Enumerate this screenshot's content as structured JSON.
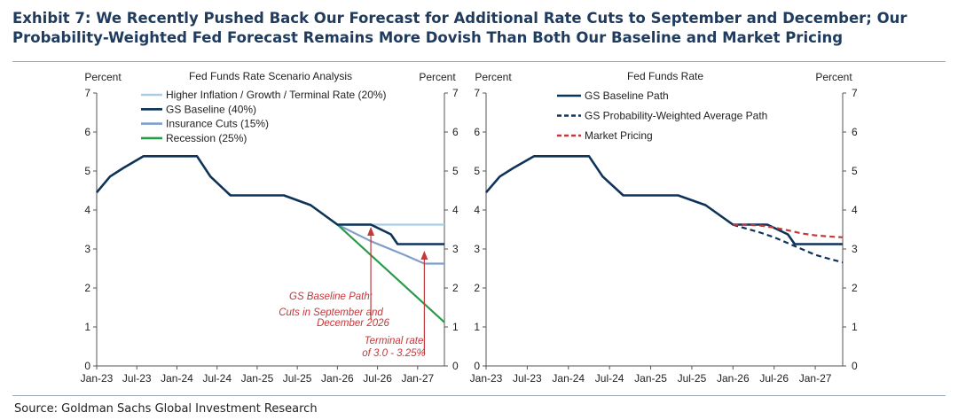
{
  "header": {
    "title_line1": "Exhibit 7: We Recently Pushed Back Our Forecast for Additional Rate Cuts to September and December; Our",
    "title_line2": "Probability-Weighted Fed Forecast Remains More Dovish Than Both Our Baseline and Market Pricing"
  },
  "footer": {
    "source": "Source: Goldman Sachs Global Investment Research"
  },
  "colors": {
    "baseline": "#0e3358",
    "inflation": "#a9cde6",
    "insurance": "#7f9fc8",
    "recession": "#2a9a4a",
    "market": "#c0393b",
    "annotation": "#c0393b",
    "axis": "#555555"
  },
  "chart_data": [
    {
      "type": "line",
      "title": "Fed Funds Rate Scenario Analysis",
      "ylabel_left": "Percent",
      "ylabel_right": "Percent",
      "ylim": [
        0,
        7
      ],
      "yticks": [
        "0",
        "1",
        "2",
        "3",
        "4",
        "5",
        "6",
        "7"
      ],
      "x_tick_labels": [
        "Jan-23",
        "Jul-23",
        "Jan-24",
        "Jul-24",
        "Jan-25",
        "Jul-25",
        "Jan-26",
        "Jul-26",
        "Jan-27"
      ],
      "x_range_months": [
        0,
        52
      ],
      "series": [
        {
          "name": "Higher Inflation / Growth / Terminal Rate (20%)",
          "color_key": "inflation",
          "dash": false,
          "x": [
            36,
            52
          ],
          "y": [
            3.625,
            3.625
          ]
        },
        {
          "name": "GS Baseline (40%)",
          "color_key": "baseline",
          "dash": false,
          "x": [
            0,
            2,
            4,
            7,
            11,
            15,
            17,
            20,
            24,
            28,
            32,
            36,
            40,
            41,
            44,
            45,
            49,
            52
          ],
          "y": [
            4.45,
            4.86,
            5.08,
            5.38,
            5.38,
            5.38,
            4.86,
            4.375,
            4.375,
            4.375,
            4.125,
            3.625,
            3.625,
            3.625,
            3.375,
            3.125,
            3.125,
            3.125
          ]
        },
        {
          "name": "Insurance Cuts (15%)",
          "color_key": "insurance",
          "dash": false,
          "x": [
            36,
            41,
            46,
            49,
            52
          ],
          "y": [
            3.625,
            3.2,
            2.85,
            2.625,
            2.625
          ]
        },
        {
          "name": "Recession (25%)",
          "color_key": "recession",
          "dash": false,
          "x": [
            36,
            52
          ],
          "y": [
            3.625,
            1.12
          ]
        }
      ],
      "annotations": [
        {
          "text": "GS Baseline Path:",
          "arrow_at_x": 41
        },
        {
          "text": "Cuts in September and"
        },
        {
          "text": "December 2026"
        },
        {
          "text": "Terminal rate",
          "arrow_at_x": 49
        },
        {
          "text": "of 3.0 - 3.25%"
        }
      ]
    },
    {
      "type": "line",
      "title": "Fed Funds Rate",
      "ylabel_left": "Percent",
      "ylabel_right": "Percent",
      "ylim": [
        0,
        7
      ],
      "yticks": [
        "0",
        "1",
        "2",
        "3",
        "4",
        "5",
        "6",
        "7"
      ],
      "x_tick_labels": [
        "Jan-23",
        "Jul-23",
        "Jan-24",
        "Jul-24",
        "Jan-25",
        "Jul-25",
        "Jan-26",
        "Jul-26",
        "Jan-27"
      ],
      "x_range_months": [
        0,
        52
      ],
      "series": [
        {
          "name": "GS Baseline Path",
          "color_key": "baseline",
          "dash": false,
          "x": [
            0,
            2,
            4,
            7,
            11,
            15,
            17,
            20,
            24,
            28,
            32,
            36,
            40,
            41,
            44,
            45,
            49,
            52
          ],
          "y": [
            4.45,
            4.86,
            5.08,
            5.38,
            5.38,
            5.38,
            4.86,
            4.375,
            4.375,
            4.375,
            4.125,
            3.625,
            3.625,
            3.625,
            3.375,
            3.125,
            3.125,
            3.125
          ]
        },
        {
          "name": "GS Probability-Weighted Average Path",
          "color_key": "baseline",
          "dash": true,
          "x": [
            36,
            38,
            40,
            42,
            44,
            46,
            48,
            50,
            52
          ],
          "y": [
            3.62,
            3.52,
            3.42,
            3.3,
            3.15,
            3.0,
            2.85,
            2.75,
            2.66
          ]
        },
        {
          "name": "Market Pricing",
          "color_key": "market",
          "dash": true,
          "x": [
            36,
            38,
            40,
            42,
            44,
            46,
            48,
            50,
            52
          ],
          "y": [
            3.62,
            3.62,
            3.6,
            3.55,
            3.48,
            3.4,
            3.35,
            3.32,
            3.3
          ]
        }
      ]
    }
  ]
}
